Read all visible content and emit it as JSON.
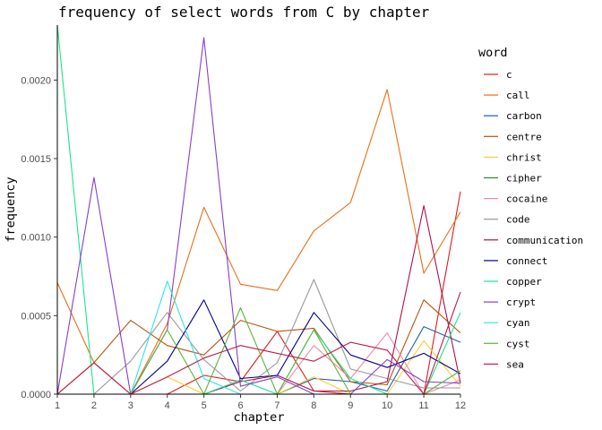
{
  "chart_data": {
    "type": "line",
    "title": "frequency of select words from C by chapter",
    "xlabel": "chapter",
    "ylabel": "frequency",
    "x": [
      1,
      2,
      3,
      4,
      5,
      6,
      7,
      8,
      9,
      10,
      11,
      12
    ],
    "xlim": [
      1,
      12
    ],
    "ylim": [
      0,
      0.00235
    ],
    "yticks": [
      0.0,
      0.0005,
      0.001,
      0.0015,
      0.002
    ],
    "ytick_labels": [
      "0.0000",
      "0.0005",
      "0.0010",
      "0.0015",
      "0.0020"
    ],
    "xtick_labels": [
      "1",
      "2",
      "3",
      "4",
      "5",
      "6",
      "7",
      "8",
      "9",
      "10",
      "11",
      "12"
    ],
    "grid": false,
    "legend": {
      "title": "word",
      "position": "right"
    },
    "series": [
      {
        "name": "c",
        "color": "#e41a1c",
        "values": [
          0,
          0,
          0,
          0,
          0.00012,
          8e-05,
          0.0004,
          2e-05,
          0,
          0,
          0,
          0.00129
        ]
      },
      {
        "name": "call",
        "color": "#e8701a",
        "values": [
          0.00071,
          0.0002,
          0,
          0.00045,
          0.00119,
          0.0007,
          0.00066,
          0.00104,
          0.00122,
          0.00194,
          0.00077,
          0.00116
        ]
      },
      {
        "name": "carbon",
        "color": "#1f5fa8",
        "values": [
          0,
          0,
          0,
          0,
          0,
          0,
          0,
          0.0001,
          8e-05,
          2e-05,
          0.00043,
          0.00033
        ]
      },
      {
        "name": "centre",
        "color": "#b8540c",
        "values": [
          0,
          0.0002,
          0.00047,
          0.00031,
          0.00025,
          0.00047,
          0.0004,
          0.00042,
          8e-05,
          6e-05,
          0.0006,
          0.00039
        ]
      },
      {
        "name": "christ",
        "color": "#ffcc33",
        "values": [
          0,
          0,
          0,
          0.00011,
          0,
          0,
          0,
          0.00011,
          0,
          0,
          0.00034,
          5e-05
        ]
      },
      {
        "name": "cipher",
        "color": "#2a8a2a",
        "values": [
          0,
          0,
          0,
          0,
          0,
          0,
          0,
          0,
          0,
          0,
          0,
          0
        ]
      },
      {
        "name": "cocaine",
        "color": "#f08aa8",
        "values": [
          0,
          0,
          0,
          0,
          0,
          0,
          0,
          0.00031,
          0.0001,
          0.00039,
          0,
          9e-05
        ]
      },
      {
        "name": "code",
        "color": "#999999",
        "values": [
          0,
          0,
          0.00021,
          0.00052,
          0.00022,
          2e-05,
          0.0002,
          0.00073,
          0.00016,
          0.0001,
          4e-05,
          4e-05
        ]
      },
      {
        "name": "communication",
        "color": "#b0104a",
        "values": [
          0,
          0,
          0,
          0,
          0,
          8e-05,
          0.00012,
          2e-05,
          2e-05,
          8e-05,
          0.0012,
          7e-05
        ]
      },
      {
        "name": "connect",
        "color": "#00008b",
        "values": [
          0,
          0,
          0,
          0.00021,
          0.0006,
          0.0001,
          0.00012,
          0.00052,
          0.00025,
          0.00017,
          0.00026,
          0.00013
        ]
      },
      {
        "name": "copper",
        "color": "#19e68c",
        "values": [
          0.00235,
          0,
          0,
          0,
          0,
          9e-05,
          0,
          0.00041,
          0.0001,
          0,
          0,
          0.00052
        ]
      },
      {
        "name": "crypt",
        "color": "#8a3ec8",
        "values": [
          0,
          0.00138,
          0,
          0.00041,
          0.00227,
          5e-05,
          0.00011,
          0,
          0,
          0.00022,
          8e-05,
          7e-05
        ]
      },
      {
        "name": "cyan",
        "color": "#2ee6e6",
        "values": [
          0,
          0,
          0,
          0.00072,
          0.0001,
          0,
          0,
          0,
          0,
          0,
          0,
          0
        ]
      },
      {
        "name": "cyst",
        "color": "#5ab53c",
        "values": [
          0,
          0,
          0,
          0.00041,
          0,
          0.00055,
          0,
          0.00041,
          0,
          0,
          0,
          0.00015
        ]
      },
      {
        "name": "sea",
        "color": "#c21c48",
        "values": [
          0,
          0.0002,
          0,
          0.00011,
          0.00023,
          0.00031,
          0.00026,
          0.00021,
          0.00033,
          0.00028,
          0,
          0.00065
        ]
      }
    ]
  }
}
